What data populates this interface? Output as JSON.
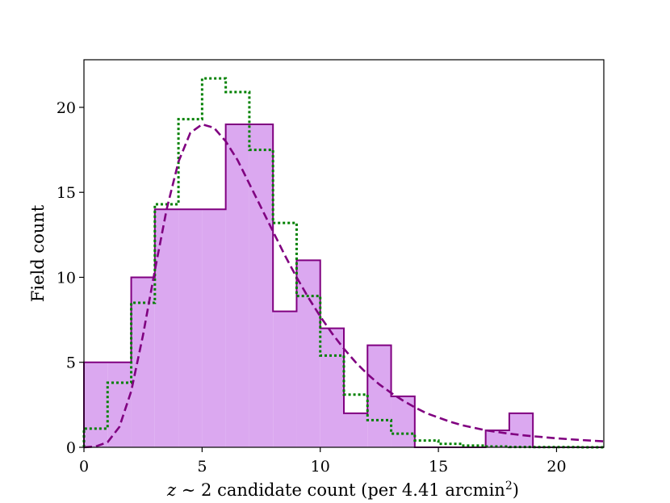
{
  "chart_data": {
    "type": "histogram",
    "xlabel": {
      "var": "z",
      "rest": " ∼ 2 candidate count (per 4.41 arcmin",
      "sup": "2",
      "close": ")"
    },
    "ylabel": "Field count",
    "xlim": [
      0,
      22
    ],
    "ylim": [
      0,
      22.8
    ],
    "xticks": [
      0,
      5,
      10,
      15,
      20
    ],
    "yticks": [
      0,
      5,
      10,
      15,
      20
    ],
    "grid": false,
    "colors": {
      "observed_fill": "#dba8f0",
      "observed_edge": "#800080",
      "model_step": "#008000",
      "fit_curve": "#800080"
    },
    "series": [
      {
        "kind": "filled-histogram",
        "bin_edges": [
          0,
          1,
          2,
          3,
          4,
          5,
          6,
          7,
          8,
          9,
          10,
          11,
          12,
          13,
          14,
          15,
          16,
          17,
          18,
          19,
          20,
          21,
          22
        ],
        "counts": [
          5,
          5,
          10,
          14,
          14,
          14,
          19,
          19,
          8,
          11,
          7,
          2,
          6,
          3,
          0,
          0,
          0,
          1,
          2,
          0,
          0,
          0
        ]
      },
      {
        "kind": "dotted-step",
        "bin_edges": [
          0,
          1,
          2,
          3,
          4,
          5,
          6,
          7,
          8,
          9,
          10,
          11,
          12,
          13,
          14,
          15,
          16,
          17,
          18,
          19,
          20,
          21,
          22
        ],
        "counts": [
          1.1,
          3.8,
          8.5,
          14.3,
          19.3,
          21.7,
          20.9,
          17.5,
          13.2,
          8.9,
          5.4,
          3.1,
          1.6,
          0.8,
          0.4,
          0.2,
          0.1,
          0.05,
          0.02,
          0.01,
          0.01,
          0.0
        ]
      },
      {
        "kind": "dashed-curve",
        "x": [
          0,
          0.5,
          1,
          1.5,
          2,
          2.5,
          3,
          3.5,
          4,
          4.5,
          5,
          5.5,
          6,
          6.5,
          7,
          7.5,
          8,
          8.5,
          9,
          9.5,
          10,
          10.5,
          11,
          11.5,
          12,
          12.5,
          13,
          13.5,
          14,
          14.5,
          15,
          15.5,
          16,
          16.5,
          17,
          17.5,
          18,
          18.5,
          19,
          19.5,
          20,
          20.5,
          21,
          21.5,
          22
        ],
        "y": [
          0,
          0.05,
          0.3,
          1.2,
          3.3,
          6.6,
          10.4,
          14.0,
          16.8,
          18.5,
          19.0,
          18.8,
          18.0,
          16.9,
          15.5,
          14.1,
          12.7,
          11.3,
          10.0,
          8.8,
          7.7,
          6.7,
          5.8,
          5.0,
          4.3,
          3.7,
          3.2,
          2.75,
          2.35,
          2.0,
          1.75,
          1.5,
          1.3,
          1.15,
          1.0,
          0.9,
          0.8,
          0.72,
          0.65,
          0.59,
          0.53,
          0.48,
          0.43,
          0.39,
          0.35
        ]
      }
    ]
  }
}
